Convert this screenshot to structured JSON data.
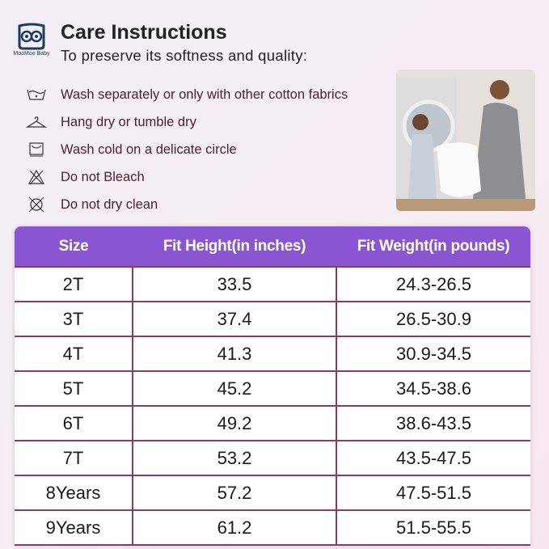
{
  "brand": {
    "name": "MooMoo Baby"
  },
  "header": {
    "title": "Care Instructions",
    "subtitle": "To preserve its softness and quality:"
  },
  "care": [
    {
      "icon": "wash-tub-icon",
      "text": "Wash separately or only with other cotton fabrics"
    },
    {
      "icon": "hanger-icon",
      "text": "Hang dry or tumble dry"
    },
    {
      "icon": "tumble-dry-icon",
      "text": "Wash cold on a delicate circle"
    },
    {
      "icon": "no-bleach-icon",
      "text": "Do not Bleach"
    },
    {
      "icon": "no-dry-clean-icon",
      "text": "Do not dry clean"
    }
  ],
  "table": {
    "headers": [
      "Size",
      "Fit Height(in inches)",
      "Fit Weight(in pounds)"
    ],
    "rows": [
      [
        "2T",
        "33.5",
        "24.3-26.5"
      ],
      [
        "3T",
        "37.4",
        "26.5-30.9"
      ],
      [
        "4T",
        "41.3",
        "30.9-34.5"
      ],
      [
        "5T",
        "45.2",
        "34.5-38.6"
      ],
      [
        "6T",
        "49.2",
        "38.6-43.5"
      ],
      [
        "7T",
        "53.2",
        "43.5-47.5"
      ],
      [
        "8Years",
        "57.2",
        "47.5-51.5"
      ],
      [
        "9Years",
        "61.2",
        "51.5-55.5"
      ]
    ]
  },
  "colors": {
    "header_bg": "#8a55d1",
    "border": "#8c3a62",
    "care_text": "#4a1f2c"
  }
}
